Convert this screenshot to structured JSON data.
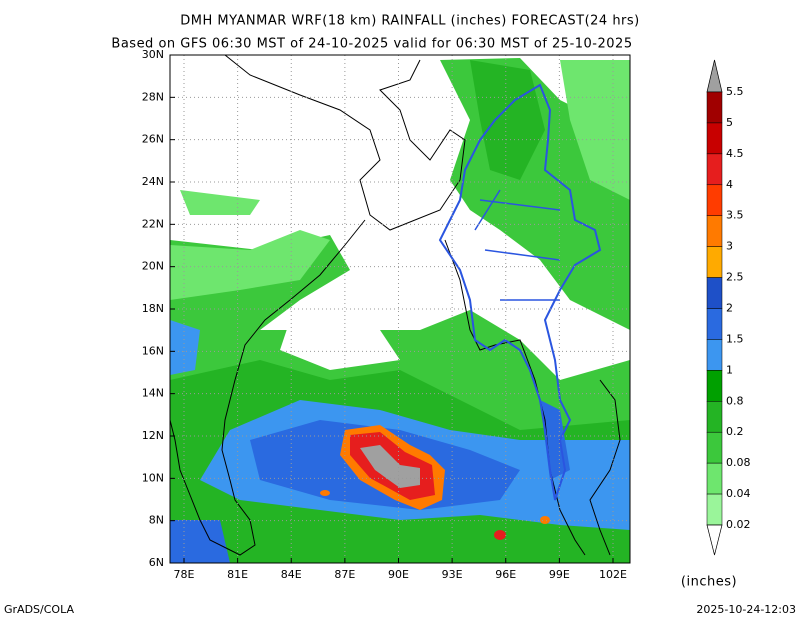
{
  "header": {
    "title": "DMH MYANMAR WRF(18 km) RAINFALL (inches) FORECAST(24 hrs)",
    "subtitle": "Based on GFS 06:30 MST of 24-10-2025 valid for 06:30 MST of 25-10-2025"
  },
  "map": {
    "lat_labels": [
      "30N",
      "28N",
      "26N",
      "24N",
      "22N",
      "20N",
      "18N",
      "16N",
      "14N",
      "12N",
      "10N",
      "8N",
      "6N"
    ],
    "lon_labels": [
      "78E",
      "81E",
      "84E",
      "87E",
      "90E",
      "93E",
      "96E",
      "99E",
      "102E"
    ]
  },
  "colorbar": {
    "levels": [
      "5.5",
      "5",
      "4.5",
      "4",
      "3.5",
      "3",
      "2.5",
      "2",
      "1.5",
      "1",
      "0.8",
      "0.2",
      "0.08",
      "0.04",
      "0.02"
    ],
    "colors": [
      "#a00000",
      "#c80000",
      "#e61e1e",
      "#ff3c00",
      "#ff7a00",
      "#ffaa00",
      "#1e50c8",
      "#2a6ae0",
      "#3c96f0",
      "#00a000",
      "#24b424",
      "#3cc83c",
      "#6ee66e",
      "#9af59a"
    ],
    "unit": "(inches)"
  },
  "footer": {
    "left": "GrADS/COLA",
    "right": "2025-10-24-12:03"
  }
}
